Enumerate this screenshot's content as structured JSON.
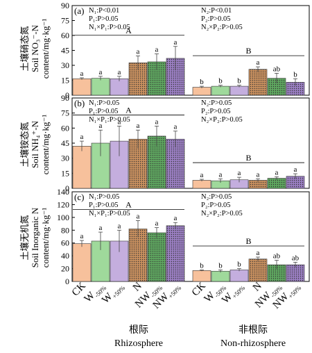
{
  "chart_data": [
    {
      "type": "bar",
      "panel": "(a)",
      "ylabel_cn": "土壤硝态氮",
      "ylabel_en1": "Soil NO₃⁻-N",
      "ylabel_en2": "content/mg·kg⁻¹",
      "ylim": [
        0,
        90
      ],
      "yticks": [
        "0",
        "15",
        "30",
        "45",
        "60",
        "75",
        "90"
      ],
      "stats_left": [
        "N₁:P<0.01",
        "P₁:P>0.05",
        "N₁×P₁:P>0.05"
      ],
      "stats_right": [
        "N₂:P<0.01",
        "P₂:P>0.05",
        "N₂×P₂:P>0.05"
      ],
      "group_letters": [
        "A",
        "B"
      ],
      "rhizosphere": {
        "values": [
          16.5,
          17,
          16.5,
          32.5,
          33.5,
          37
        ],
        "errors": [
          1,
          2,
          2.5,
          7,
          8,
          12
        ],
        "letters": [
          "a",
          "a",
          "a",
          "a",
          "a",
          "a"
        ]
      },
      "non_rhizosphere": {
        "values": [
          8,
          9,
          9,
          26,
          17,
          13
        ],
        "errors": [
          1,
          1,
          1,
          2.5,
          5,
          3.5
        ],
        "letters": [
          "b",
          "b",
          "b",
          "a",
          "ab",
          "b"
        ]
      }
    },
    {
      "type": "bar",
      "panel": "(b)",
      "ylabel_cn": "土壤铵态氮",
      "ylabel_en1": "Soil NH₄⁺-N",
      "ylabel_en2": "content/mg·kg⁻¹",
      "ylim": [
        0,
        90
      ],
      "yticks": [
        "0",
        "15",
        "30",
        "45",
        "60",
        "75",
        "90"
      ],
      "stats_left": [
        "N₁:P>0.05",
        "P₁:P>0.05",
        "N₁×P₁:P>0.05"
      ],
      "stats_right": [
        "N₂:P>0.05",
        "P₂:P>0.05",
        "N₂×P₂:P>0.05"
      ],
      "group_letters": [
        "A",
        "B"
      ],
      "rhizosphere": {
        "values": [
          42,
          45,
          47,
          49,
          52,
          49
        ],
        "errors": [
          5,
          13,
          15,
          9,
          10,
          8
        ],
        "letters": [
          "a",
          "a",
          "a",
          "a",
          "a",
          "a"
        ]
      },
      "non_rhizosphere": {
        "values": [
          8,
          7.5,
          8.5,
          8,
          10,
          12
        ],
        "errors": [
          1,
          2,
          2.5,
          1.5,
          1.5,
          2.5
        ],
        "letters": [
          "a",
          "a",
          "a",
          "a",
          "a",
          "a"
        ]
      }
    },
    {
      "type": "bar",
      "panel": "(c)",
      "ylabel_cn": "土壤无机氮",
      "ylabel_en1": "Soil Inorganic N",
      "ylabel_en2": "content/mg·kg⁻¹",
      "ylim": [
        0,
        140
      ],
      "yticks": [
        "0",
        "20",
        "40",
        "60",
        "80",
        "100",
        "120",
        "140"
      ],
      "stats_left": [
        "N₁:P>0.05",
        "P₁:P>0.05",
        "N₁×P₁:P>0.05"
      ],
      "stats_right": [
        "N₂:P>0.05",
        "P₂:P>0.05",
        "N₂×P₂:P>0.05"
      ],
      "group_letters": [
        "A",
        "B"
      ],
      "rhizosphere": {
        "values": [
          59,
          63,
          63,
          82,
          76,
          87
        ],
        "errors": [
          5,
          14,
          17,
          13,
          8,
          5
        ],
        "letters": [
          "a",
          "a",
          "a",
          "a",
          "a",
          "a"
        ]
      },
      "non_rhizosphere": {
        "values": [
          17,
          16,
          18,
          35,
          26,
          26
        ],
        "errors": [
          1,
          2,
          2,
          3,
          7,
          4
        ],
        "letters": [
          "b",
          "b",
          "b",
          "a",
          "ab",
          "ab"
        ]
      }
    }
  ],
  "treatments": [
    {
      "base": "CK",
      "sub": ""
    },
    {
      "base": "W",
      "sub": "-50%"
    },
    {
      "base": "W",
      "sub": "+50%"
    },
    {
      "base": "N",
      "sub": ""
    },
    {
      "base": "NW",
      "sub": "-50%"
    },
    {
      "base": "NW",
      "sub": "+50%"
    }
  ],
  "groups": [
    {
      "cn": "根际",
      "en": "Rhizosphere"
    },
    {
      "cn": "非根际",
      "en": "Non-rhizosphere"
    }
  ],
  "colors": {
    "CK": "#f7c19c",
    "W-50%": "#9fd99b",
    "W+50%": "#c4aede",
    "N": "#c9905f",
    "NW-50%": "#5fa860",
    "NW+50%": "#9b7fc3"
  }
}
